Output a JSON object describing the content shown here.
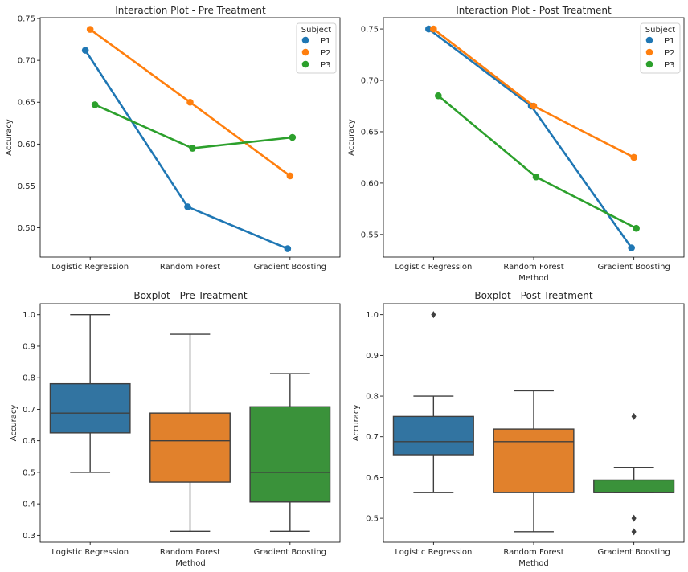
{
  "chart_data": [
    {
      "type": "line",
      "title": "Interaction Plot - Pre Treatment",
      "xlabel": "",
      "ylabel": "Accuracy",
      "categories": [
        "Logistic Regression",
        "Random Forest",
        "Gradient Boosting"
      ],
      "ylim": [
        0.465,
        0.751
      ],
      "yticks": [
        0.5,
        0.55,
        0.6,
        0.65,
        0.7,
        0.75
      ],
      "ytick_labels": [
        "0.50",
        "0.55",
        "0.60",
        "0.65",
        "0.70",
        "0.75"
      ],
      "legend": {
        "title": "Subject",
        "position": "top-right"
      },
      "series": [
        {
          "name": "P1",
          "color": "#1f77b4",
          "values": [
            0.712,
            0.525,
            0.475
          ]
        },
        {
          "name": "P2",
          "color": "#ff7f0e",
          "values": [
            0.737,
            0.65,
            0.562
          ]
        },
        {
          "name": "P3",
          "color": "#2ca02c",
          "values": [
            0.647,
            0.595,
            0.608
          ]
        }
      ]
    },
    {
      "type": "line",
      "title": "Interaction Plot - Post Treatment",
      "xlabel": "Method",
      "ylabel": "Accuracy",
      "categories": [
        "Logistic Regression",
        "Random Forest",
        "Gradient Boosting"
      ],
      "ylim": [
        0.528,
        0.761
      ],
      "yticks": [
        0.55,
        0.6,
        0.65,
        0.7,
        0.75
      ],
      "ytick_labels": [
        "0.55",
        "0.60",
        "0.65",
        "0.70",
        "0.75"
      ],
      "legend": {
        "title": "Subject",
        "position": "top-right"
      },
      "series": [
        {
          "name": "P1",
          "color": "#1f77b4",
          "values": [
            0.75,
            0.675,
            0.537
          ]
        },
        {
          "name": "P2",
          "color": "#ff7f0e",
          "values": [
            0.75,
            0.675,
            0.625
          ]
        },
        {
          "name": "P3",
          "color": "#2ca02c",
          "values": [
            0.685,
            0.606,
            0.556
          ]
        }
      ]
    },
    {
      "type": "boxplot",
      "title": "Boxplot - Pre Treatment",
      "xlabel": "Method",
      "ylabel": "Accuracy",
      "categories": [
        "Logistic Regression",
        "Random Forest",
        "Gradient Boosting"
      ],
      "ylim": [
        0.278,
        1.035
      ],
      "yticks": [
        0.3,
        0.4,
        0.5,
        0.6,
        0.7,
        0.8,
        0.9,
        1.0
      ],
      "ytick_labels": [
        "0.3",
        "0.4",
        "0.5",
        "0.6",
        "0.7",
        "0.8",
        "0.9",
        "1.0"
      ],
      "boxes": [
        {
          "category": "Logistic Regression",
          "color": "#3274a1",
          "whisker_low": 0.5,
          "q1": 0.625,
          "median": 0.688,
          "q3": 0.781,
          "whisker_high": 1.0,
          "outliers": []
        },
        {
          "category": "Random Forest",
          "color": "#e1812c",
          "whisker_low": 0.313,
          "q1": 0.469,
          "median": 0.6,
          "q3": 0.688,
          "whisker_high": 0.938,
          "outliers": []
        },
        {
          "category": "Gradient Boosting",
          "color": "#3a923a",
          "whisker_low": 0.313,
          "q1": 0.406,
          "median": 0.5,
          "q3": 0.708,
          "whisker_high": 0.813,
          "outliers": []
        }
      ]
    },
    {
      "type": "boxplot",
      "title": "Boxplot - Post Treatment",
      "xlabel": "Method",
      "ylabel": "Accuracy",
      "categories": [
        "Logistic Regression",
        "Random Forest",
        "Gradient Boosting"
      ],
      "ylim": [
        0.441,
        1.027
      ],
      "yticks": [
        0.5,
        0.6,
        0.7,
        0.8,
        0.9,
        1.0
      ],
      "ytick_labels": [
        "0.5",
        "0.6",
        "0.7",
        "0.8",
        "0.9",
        "1.0"
      ],
      "boxes": [
        {
          "category": "Logistic Regression",
          "color": "#3274a1",
          "whisker_low": 0.563,
          "q1": 0.656,
          "median": 0.688,
          "q3": 0.75,
          "whisker_high": 0.8,
          "outliers": [
            1.0
          ]
        },
        {
          "category": "Random Forest",
          "color": "#e1812c",
          "whisker_low": 0.467,
          "q1": 0.563,
          "median": 0.688,
          "q3": 0.719,
          "whisker_high": 0.813,
          "outliers": []
        },
        {
          "category": "Gradient Boosting",
          "color": "#3a923a",
          "whisker_low": 0.563,
          "q1": 0.563,
          "median": 0.563,
          "q3": 0.594,
          "whisker_high": 0.625,
          "outliers": [
            0.75,
            0.5,
            0.467
          ]
        }
      ]
    }
  ]
}
